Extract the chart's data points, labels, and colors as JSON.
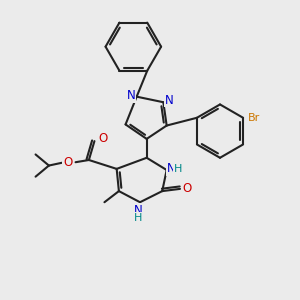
{
  "background_color": "#ebebeb",
  "bond_color": "#222222",
  "n_color": "#0000cc",
  "o_color": "#cc0000",
  "br_color": "#cc7700",
  "h_color": "#008888",
  "figsize": [
    3.0,
    3.0
  ],
  "dpi": 100,
  "xlim": [
    20,
    290
  ],
  "ylim": [
    20,
    290
  ]
}
